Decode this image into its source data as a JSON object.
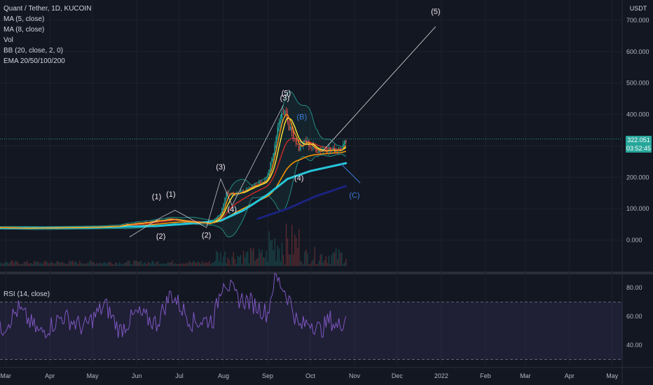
{
  "legend": {
    "title": "Quant / Tether, 1D, KUCOIN",
    "studies": [
      "MA (5, close)",
      "MA (8, close)",
      "Vol",
      "BB (20, close, 2, 0)",
      "EMA 20/50/100/200"
    ],
    "rsi": "RSI (14, close)"
  },
  "price_axis": {
    "currency": "USDT",
    "last_price": "322.051",
    "countdown": "03:52:45"
  },
  "colors": {
    "background": "#131722",
    "candle_up": "#26a69a",
    "candle_down": "#ef5350",
    "ma5": "#f7931a",
    "ma8": "#ffeb3b",
    "ema20": "#c62828",
    "ema50": "#ff9800",
    "ema100": "#26c6da",
    "ema200": "#1a237e",
    "bb": "#26a69a",
    "rsi": "#7e57c2",
    "wave_white": "#e0e0e0",
    "wave_blue": "#3d7bd8"
  },
  "chart_data": [
    {
      "type": "line",
      "title": "Quant / Tether, 1D, KUCOIN",
      "x_ticks": [
        "Mar",
        "Apr",
        "May",
        "Jun",
        "Jul",
        "Aug",
        "Sep",
        "Oct",
        "Nov",
        "Dec",
        "2022",
        "Feb",
        "Mar",
        "Apr",
        "May"
      ],
      "y_ticks": [
        "700.000",
        "600.000",
        "500.000",
        "400.000",
        "300.000",
        "200.000",
        "100.000",
        "0.000"
      ],
      "ylim": [
        -45,
        740
      ],
      "series": [
        {
          "kind": "price",
          "x": [
            "2021-02-25",
            "2021-03-15",
            "2021-04-01",
            "2021-04-15",
            "2021-05-01",
            "2021-05-15",
            "2021-05-25",
            "2021-06-05",
            "2021-06-15",
            "2021-06-25",
            "2021-07-05",
            "2021-07-15",
            "2021-07-22",
            "2021-07-30",
            "2021-08-03",
            "2021-08-10",
            "2021-08-17",
            "2021-08-24",
            "2021-08-31",
            "2021-09-04",
            "2021-09-07",
            "2021-09-10",
            "2021-09-13",
            "2021-09-16",
            "2021-09-19",
            "2021-09-23",
            "2021-09-27",
            "2021-10-01",
            "2021-10-06",
            "2021-10-11",
            "2021-10-16",
            "2021-10-21",
            "2021-10-24",
            "2021-10-26"
          ],
          "y": [
            40,
            38,
            39,
            40,
            41,
            43,
            50,
            55,
            62,
            68,
            60,
            55,
            52,
            85,
            150,
            145,
            160,
            175,
            190,
            260,
            330,
            390,
            420,
            360,
            335,
            290,
            315,
            300,
            285,
            290,
            285,
            290,
            300,
            322
          ]
        },
        {
          "kind": "ema100",
          "x": [
            "2021-02-25",
            "2021-05-01",
            "2021-06-15",
            "2021-07-15",
            "2021-07-30",
            "2021-08-15",
            "2021-09-01",
            "2021-09-15",
            "2021-10-01",
            "2021-10-26"
          ],
          "y": [
            38,
            40,
            45,
            55,
            62,
            95,
            145,
            195,
            220,
            245
          ]
        },
        {
          "kind": "ema200",
          "x": [
            "2021-08-25",
            "2021-09-15",
            "2021-10-05",
            "2021-10-26"
          ],
          "y": [
            68,
            100,
            140,
            172
          ]
        }
      ],
      "annotations": [
        {
          "text": "(1)",
          "x": "2021-06-15",
          "y": 130
        },
        {
          "text": "(1)",
          "x": "2021-06-25",
          "y": 138
        },
        {
          "text": "(2)",
          "x": "2021-06-18",
          "y": 5
        },
        {
          "text": "(2)",
          "x": "2021-07-20",
          "y": 8
        },
        {
          "text": "(3)",
          "x": "2021-07-30",
          "y": 225
        },
        {
          "text": "(4)",
          "x": "2021-08-07",
          "y": 90
        },
        {
          "text": "(3)",
          "x": "2021-09-13",
          "y": 445
        },
        {
          "text": "(5)",
          "x": "2021-09-14",
          "y": 460
        },
        {
          "text": "(4)",
          "x": "2021-09-23",
          "y": 190
        },
        {
          "text": "(B)",
          "x": "2021-09-25",
          "y": 385
        },
        {
          "text": "(C)",
          "x": "2021-11-01",
          "y": 135
        },
        {
          "text": "(5)",
          "x": "2021-12-28",
          "y": 720
        }
      ]
    },
    {
      "type": "line",
      "title": "RSI (14, close)",
      "y_ticks": [
        "80.00",
        "60.00",
        "40.00"
      ],
      "bands": [
        70,
        30
      ],
      "series": [
        {
          "name": "RSI",
          "x": [
            "2021-02-25",
            "2021-03-10",
            "2021-03-25",
            "2021-04-10",
            "2021-04-25",
            "2021-05-10",
            "2021-05-20",
            "2021-06-01",
            "2021-06-15",
            "2021-06-25",
            "2021-07-10",
            "2021-07-25",
            "2021-08-01",
            "2021-08-10",
            "2021-08-20",
            "2021-09-01",
            "2021-09-06",
            "2021-09-12",
            "2021-09-17",
            "2021-09-23",
            "2021-10-01",
            "2021-10-08",
            "2021-10-15",
            "2021-10-20",
            "2021-10-26"
          ],
          "y": [
            50,
            65,
            48,
            60,
            52,
            68,
            50,
            62,
            55,
            76,
            56,
            58,
            87,
            73,
            70,
            62,
            88,
            80,
            70,
            52,
            57,
            50,
            58,
            52,
            60
          ]
        }
      ]
    }
  ]
}
